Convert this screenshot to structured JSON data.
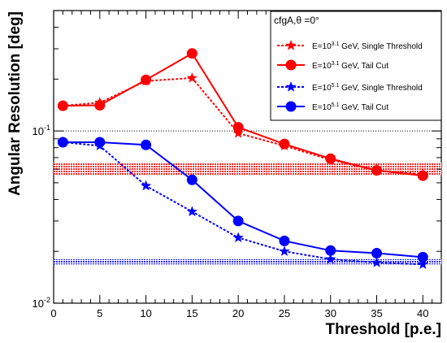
{
  "chart_data": {
    "type": "line",
    "xlabel": "Threshold [p.e.]",
    "ylabel": "Angular Resolution [deg]",
    "x_scale": "linear",
    "y_scale": "log",
    "xlim": [
      0,
      42
    ],
    "ylim": [
      0.01,
      0.5
    ],
    "x_ticks": [
      0,
      5,
      10,
      15,
      20,
      25,
      30,
      35,
      40
    ],
    "y_tick_labels": [
      {
        "base": "10",
        "exp": "-2",
        "value": 0.01
      },
      {
        "base": "10",
        "exp": "-1",
        "value": 0.1
      }
    ],
    "reference_line": {
      "y": 0.1,
      "style": "dotted",
      "color": "#000000"
    },
    "legend": {
      "title": "cfgA,θ =0°",
      "position": "top-right"
    },
    "bands": [
      {
        "name": "E=10^3.1 GeV band",
        "y_min": 0.0555,
        "y_max": 0.0655,
        "color": "#ff0000"
      },
      {
        "name": "E=10^5.1 GeV band",
        "y_min": 0.0168,
        "y_max": 0.018,
        "color": "#0000ff"
      }
    ],
    "series": [
      {
        "energy_base": "E=10",
        "energy_exp": "3.1",
        "suffix": " GeV, Single Threshold",
        "color": "#ff0000",
        "marker": "star",
        "dash": "dotted",
        "x": [
          1,
          5,
          10,
          15,
          20,
          25,
          30,
          35,
          40
        ],
        "y": [
          0.14,
          0.146,
          0.195,
          0.203,
          0.097,
          0.082,
          0.068,
          0.059,
          0.056
        ]
      },
      {
        "energy_base": "E=10",
        "energy_exp": "3.1",
        "suffix": " GeV, Tail Cut",
        "color": "#ff0000",
        "marker": "circle",
        "dash": "solid",
        "x": [
          1,
          5,
          10,
          15,
          20,
          25,
          30,
          35,
          40
        ],
        "y": [
          0.14,
          0.141,
          0.198,
          0.282,
          0.105,
          0.084,
          0.069,
          0.059,
          0.055
        ]
      },
      {
        "energy_base": "E=10",
        "energy_exp": "5.1",
        "suffix": " GeV, Single Threshold",
        "color": "#0000ff",
        "marker": "star",
        "dash": "dotted",
        "x": [
          1,
          5,
          10,
          15,
          20,
          25,
          30,
          35,
          40
        ],
        "y": [
          0.086,
          0.082,
          0.048,
          0.034,
          0.024,
          0.02,
          0.018,
          0.0172,
          0.0168
        ]
      },
      {
        "energy_base": "E=10",
        "energy_exp": "5.1",
        "suffix": " GeV, Tail Cut",
        "color": "#0000ff",
        "marker": "circle",
        "dash": "solid",
        "x": [
          1,
          5,
          10,
          15,
          20,
          25,
          30,
          35,
          40
        ],
        "y": [
          0.086,
          0.086,
          0.083,
          0.052,
          0.03,
          0.023,
          0.0202,
          0.0195,
          0.0185
        ]
      }
    ]
  }
}
